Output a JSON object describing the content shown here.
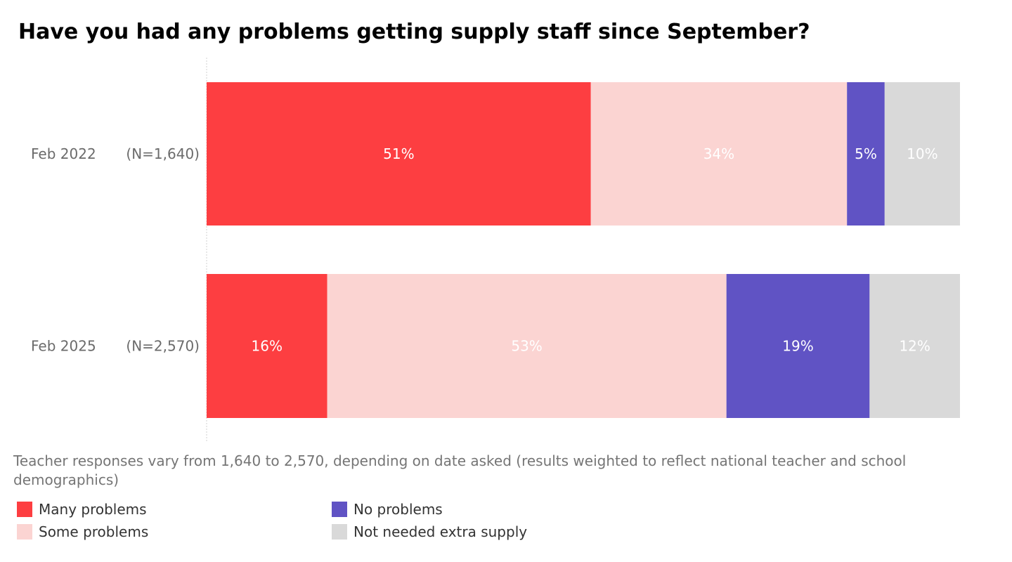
{
  "chart_data": {
    "type": "bar",
    "orientation": "horizontal",
    "stacked": true,
    "title": "Have you had any problems getting supply staff since September?",
    "categories": [
      "Feb 2022",
      "Feb 2025"
    ],
    "sample_sizes": [
      "(N=1,640)",
      "(N=2,570)"
    ],
    "series": [
      {
        "name": "Many problems",
        "color": "#fd3e41",
        "label_color": "#ffffff",
        "values": [
          51,
          16
        ],
        "labels": [
          "51%",
          "16%"
        ]
      },
      {
        "name": "Some problems",
        "color": "#fbd4d2",
        "label_color": "#ffffff",
        "values": [
          34,
          53
        ],
        "labels": [
          "34%",
          "53%"
        ]
      },
      {
        "name": "No problems",
        "color": "#6053c4",
        "label_color": "#ffffff",
        "values": [
          5,
          19
        ],
        "labels": [
          "5%",
          "19%"
        ]
      },
      {
        "name": "Not needed extra supply",
        "color": "#d9d9d9",
        "label_color": "#ffffff",
        "values": [
          10,
          12
        ],
        "labels": [
          "10%",
          "12%"
        ]
      }
    ],
    "xlim": [
      0,
      100
    ],
    "note": "Teacher responses vary from 1,640 to 2,570, depending on date asked (results weighted to reflect national teacher and school demographics)",
    "legend_position": "bottom-left"
  }
}
